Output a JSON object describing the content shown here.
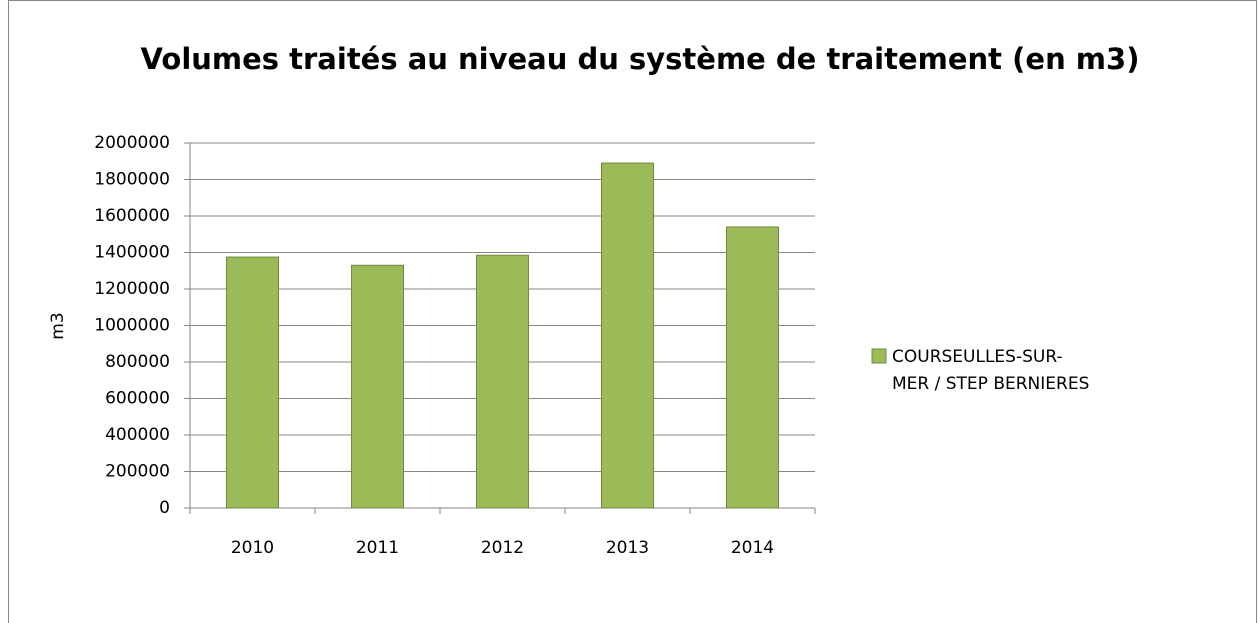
{
  "chart_data": {
    "type": "bar",
    "title": "Volumes traités au niveau du système de traitement (en m3)",
    "y_label": "m3",
    "categories": [
      "2010",
      "2011",
      "2012",
      "2013",
      "2014"
    ],
    "series": [
      {
        "name": "COURSEULLES-SUR-MER / STEP BERNIERES",
        "color": "#9bbb59",
        "values": [
          1375000,
          1330000,
          1385000,
          1890000,
          1540000
        ]
      }
    ],
    "ylim": [
      0,
      2000000
    ],
    "yticks": [
      0,
      200000,
      400000,
      600000,
      800000,
      1000000,
      1200000,
      1400000,
      1600000,
      1800000,
      2000000
    ],
    "grid": true,
    "legend": "right"
  }
}
